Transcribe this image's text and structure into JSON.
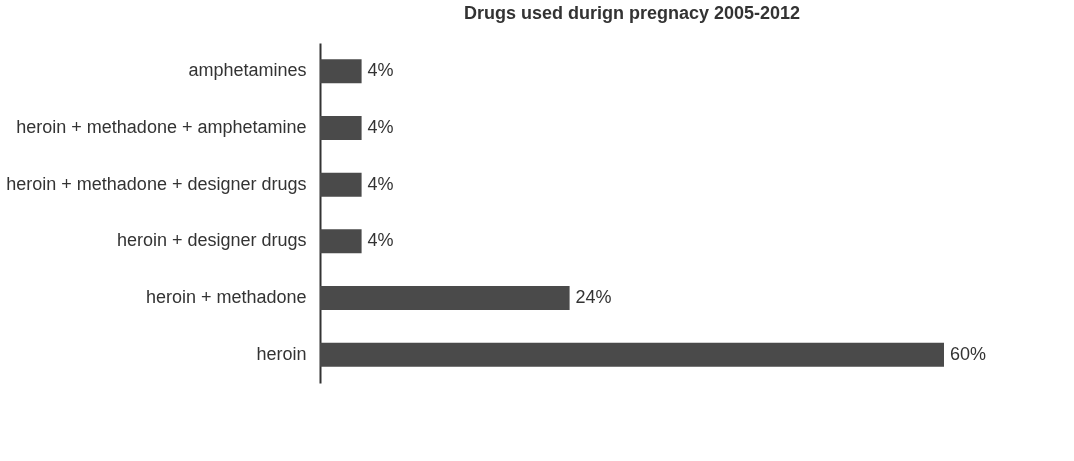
{
  "chart_data": {
    "type": "bar",
    "orientation": "horizontal",
    "title": "Drugs used durign pregnacy 2005-2012",
    "categories": [
      "amphetamines",
      "heroin + methadone + amphetamine",
      "heroin + methadone + designer drugs",
      "heroin + designer drugs",
      "heroin + methadone",
      "heroin"
    ],
    "values": [
      4,
      4,
      4,
      4,
      24,
      60
    ],
    "value_labels": [
      "4%",
      "4%",
      "4%",
      "4%",
      "24%",
      "60%"
    ],
    "color": "#4a4a4a",
    "grid": false
  }
}
